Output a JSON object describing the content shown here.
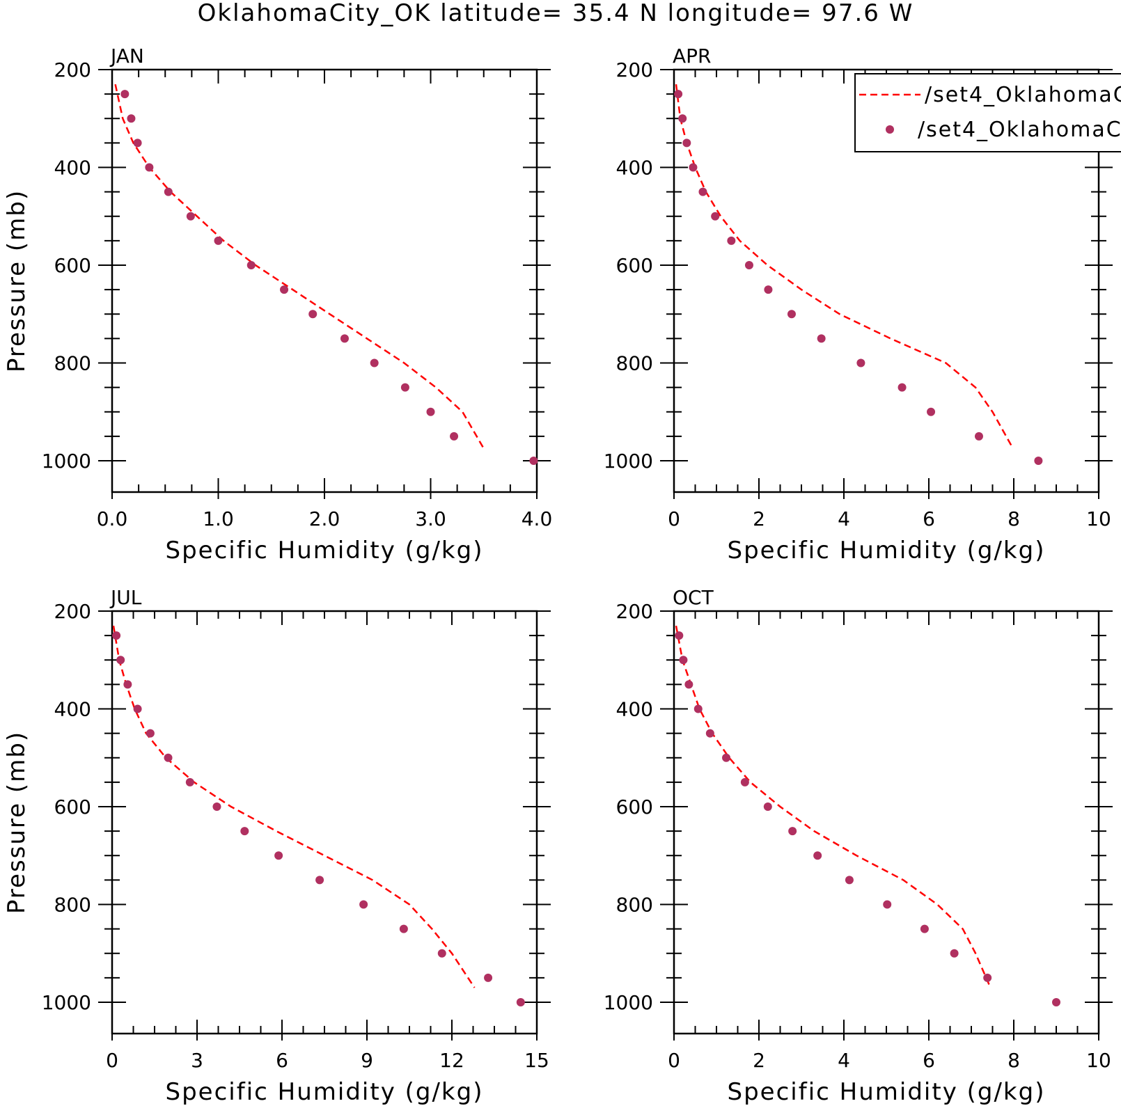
{
  "title": "OklahomaCity_OK  latitude= 35.4 N longitude= 97.6 W",
  "colors": {
    "line": "#ff0000",
    "marker": "#b03060",
    "axis": "#000000"
  },
  "legend": {
    "placement": "top-right of APR panel",
    "entries": [
      {
        "label": "/set4_OklahomaC",
        "style": "dashed-line"
      },
      {
        "label": "/set4_OklahomaC",
        "style": "marker"
      }
    ]
  },
  "chart_data": [
    {
      "type": "line",
      "panel": "JAN",
      "xlabel": "Specific Humidity (g/kg)",
      "ylabel": "Pressure (mb)",
      "xlim": [
        0,
        4
      ],
      "ylim": [
        200,
        1000
      ],
      "y_inverted": true,
      "xticks": [
        0,
        1,
        2,
        3,
        4
      ],
      "xtick_labels": [
        "0.0",
        "1.0",
        "2.0",
        "3.0",
        "4.0"
      ],
      "yticks": [
        200,
        400,
        600,
        800,
        1000
      ],
      "ytick_labels": [
        "200",
        "400",
        "600",
        "800",
        "1000"
      ],
      "series": [
        {
          "style": "dashed-line",
          "x": [
            0.03,
            0.1,
            0.2,
            0.35,
            0.55,
            0.8,
            1.05,
            1.35,
            1.7,
            2.05,
            2.4,
            2.75,
            3.05,
            3.3,
            3.5
          ],
          "y": [
            230,
            300,
            350,
            400,
            450,
            500,
            550,
            600,
            650,
            700,
            750,
            800,
            850,
            900,
            975
          ]
        },
        {
          "style": "marker",
          "x": [
            0.12,
            0.18,
            0.24,
            0.35,
            0.53,
            0.74,
            1.0,
            1.31,
            1.62,
            1.89,
            2.19,
            2.47,
            2.76,
            3.0,
            3.22,
            3.97
          ],
          "y": [
            250,
            300,
            350,
            400,
            450,
            500,
            550,
            600,
            650,
            700,
            750,
            800,
            850,
            900,
            950,
            1000
          ]
        }
      ]
    },
    {
      "type": "line",
      "panel": "APR",
      "xlabel": "Specific Humidity (g/kg)",
      "ylabel": "",
      "xlim": [
        0,
        10
      ],
      "ylim": [
        200,
        1000
      ],
      "y_inverted": true,
      "xticks": [
        0,
        2,
        4,
        6,
        8,
        10
      ],
      "xtick_labels": [
        "0",
        "2",
        "4",
        "6",
        "8",
        "10"
      ],
      "series": [
        {
          "style": "dashed-line",
          "x": [
            0.05,
            0.15,
            0.3,
            0.5,
            0.75,
            1.1,
            1.55,
            2.2,
            3.0,
            3.9,
            5.1,
            6.4,
            7.1,
            7.5,
            7.95
          ],
          "y": [
            230,
            300,
            350,
            400,
            450,
            500,
            550,
            600,
            650,
            700,
            750,
            800,
            850,
            900,
            970
          ]
        },
        {
          "style": "marker",
          "x": [
            0.1,
            0.2,
            0.3,
            0.45,
            0.68,
            0.97,
            1.35,
            1.77,
            2.22,
            2.77,
            3.47,
            4.4,
            5.37,
            6.05,
            7.18,
            8.58
          ],
          "y": [
            250,
            300,
            350,
            400,
            450,
            500,
            550,
            600,
            650,
            700,
            750,
            800,
            850,
            900,
            950,
            1000
          ]
        }
      ]
    },
    {
      "type": "line",
      "panel": "JUL",
      "xlabel": "Specific Humidity (g/kg)",
      "ylabel": "Pressure (mb)",
      "xlim": [
        0,
        15
      ],
      "ylim": [
        200,
        1000
      ],
      "y_inverted": true,
      "xticks": [
        0,
        3,
        6,
        9,
        12,
        15
      ],
      "xtick_labels": [
        "0",
        "3",
        "6",
        "9",
        "12",
        "15"
      ],
      "series": [
        {
          "style": "dashed-line",
          "x": [
            0.05,
            0.25,
            0.5,
            0.8,
            1.2,
            1.9,
            2.9,
            4.2,
            5.8,
            7.5,
            9.2,
            10.5,
            11.3,
            12.0,
            12.8
          ],
          "y": [
            230,
            300,
            350,
            400,
            450,
            500,
            550,
            600,
            650,
            700,
            750,
            800,
            850,
            900,
            970
          ]
        },
        {
          "style": "marker",
          "x": [
            0.15,
            0.3,
            0.55,
            0.9,
            1.35,
            1.98,
            2.75,
            3.7,
            4.68,
            5.88,
            7.33,
            8.88,
            10.3,
            11.65,
            13.28,
            14.43
          ],
          "y": [
            250,
            300,
            350,
            400,
            450,
            500,
            550,
            600,
            650,
            700,
            750,
            800,
            850,
            900,
            950,
            1000
          ]
        }
      ]
    },
    {
      "type": "line",
      "panel": "OCT",
      "xlabel": "Specific Humidity (g/kg)",
      "ylabel": "",
      "xlim": [
        0,
        10
      ],
      "ylim": [
        200,
        1000
      ],
      "y_inverted": true,
      "xticks": [
        0,
        2,
        4,
        6,
        8,
        10
      ],
      "xtick_labels": [
        "0",
        "2",
        "4",
        "6",
        "8",
        "10"
      ],
      "series": [
        {
          "style": "dashed-line",
          "x": [
            0.05,
            0.2,
            0.4,
            0.6,
            0.9,
            1.3,
            1.8,
            2.5,
            3.3,
            4.3,
            5.4,
            6.2,
            6.8,
            7.1,
            7.45
          ],
          "y": [
            230,
            300,
            350,
            400,
            450,
            500,
            550,
            600,
            650,
            700,
            750,
            800,
            850,
            900,
            970
          ]
        },
        {
          "style": "marker",
          "x": [
            0.12,
            0.22,
            0.35,
            0.57,
            0.85,
            1.23,
            1.67,
            2.21,
            2.79,
            3.38,
            4.13,
            5.02,
            5.9,
            6.6,
            7.38,
            9.0
          ],
          "y": [
            250,
            300,
            350,
            400,
            450,
            500,
            550,
            600,
            650,
            700,
            750,
            800,
            850,
            900,
            950,
            1000
          ]
        }
      ]
    }
  ]
}
